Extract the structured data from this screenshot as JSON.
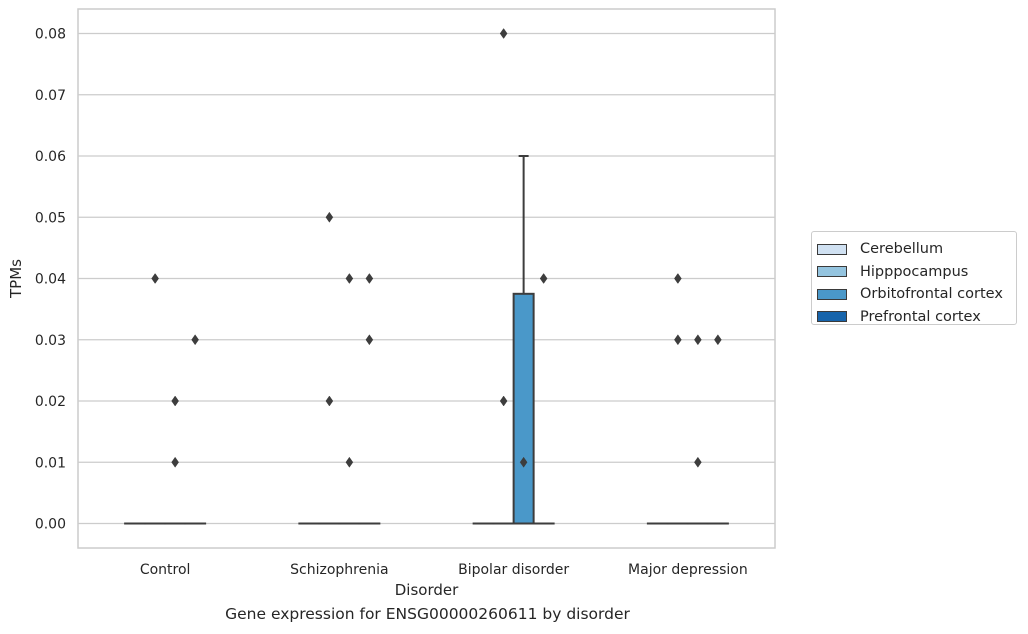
{
  "chart_data": {
    "type": "box",
    "title": "Gene expression for ENSG00000260611 by disorder",
    "xlabel": "Disorder",
    "ylabel": "TPMs",
    "ylim": [
      -0.004,
      0.084
    ],
    "yticks": [
      "0.00",
      "0.01",
      "0.02",
      "0.03",
      "0.04",
      "0.05",
      "0.06",
      "0.07",
      "0.08"
    ],
    "grid": true,
    "legend_position": "right",
    "categories": [
      "Control",
      "Schizophrenia",
      "Bipolar disorder",
      "Major depression"
    ],
    "series": [
      {
        "name": "Cerebellum",
        "color": "#d0e1f2"
      },
      {
        "name": "Hipppocampus",
        "color": "#94c4df"
      },
      {
        "name": "Orbitofrontal cortex",
        "color": "#4a98c9"
      },
      {
        "name": "Prefrontal cortex",
        "color": "#1764ab"
      }
    ],
    "boxes": [
      {
        "category": "Control",
        "series": "Cerebellum",
        "q1": 0,
        "median": 0,
        "q3": 0,
        "whisker_low": 0,
        "whisker_high": 0,
        "outliers": []
      },
      {
        "category": "Control",
        "series": "Hipppocampus",
        "q1": 0,
        "median": 0,
        "q3": 0,
        "whisker_low": 0,
        "whisker_high": 0,
        "outliers": [
          0.04
        ]
      },
      {
        "category": "Control",
        "series": "Orbitofrontal cortex",
        "q1": 0,
        "median": 0,
        "q3": 0,
        "whisker_low": 0,
        "whisker_high": 0,
        "outliers": [
          0.02,
          0.01
        ]
      },
      {
        "category": "Control",
        "series": "Prefrontal cortex",
        "q1": 0,
        "median": 0,
        "q3": 0,
        "whisker_low": 0,
        "whisker_high": 0,
        "outliers": [
          0.03
        ]
      },
      {
        "category": "Schizophrenia",
        "series": "Cerebellum",
        "q1": 0,
        "median": 0,
        "q3": 0,
        "whisker_low": 0,
        "whisker_high": 0,
        "outliers": []
      },
      {
        "category": "Schizophrenia",
        "series": "Hipppocampus",
        "q1": 0,
        "median": 0,
        "q3": 0,
        "whisker_low": 0,
        "whisker_high": 0,
        "outliers": [
          0.05,
          0.02
        ]
      },
      {
        "category": "Schizophrenia",
        "series": "Orbitofrontal cortex",
        "q1": 0,
        "median": 0,
        "q3": 0,
        "whisker_low": 0,
        "whisker_high": 0,
        "outliers": [
          0.04,
          0.01
        ]
      },
      {
        "category": "Schizophrenia",
        "series": "Prefrontal cortex",
        "q1": 0,
        "median": 0,
        "q3": 0,
        "whisker_low": 0,
        "whisker_high": 0,
        "outliers": [
          0.04,
          0.03
        ]
      },
      {
        "category": "Bipolar disorder",
        "series": "Cerebellum",
        "q1": 0,
        "median": 0,
        "q3": 0,
        "whisker_low": 0,
        "whisker_high": 0,
        "outliers": []
      },
      {
        "category": "Bipolar disorder",
        "series": "Hipppocampus",
        "q1": 0,
        "median": 0,
        "q3": 0,
        "whisker_low": 0,
        "whisker_high": 0,
        "outliers": [
          0.08,
          0.02
        ]
      },
      {
        "category": "Bipolar disorder",
        "series": "Orbitofrontal cortex",
        "q1": 0,
        "median": 0,
        "q3": 0.0375,
        "whisker_low": 0,
        "whisker_high": 0.06,
        "outliers": [
          0.01
        ]
      },
      {
        "category": "Bipolar disorder",
        "series": "Prefrontal cortex",
        "q1": 0,
        "median": 0,
        "q3": 0,
        "whisker_low": 0,
        "whisker_high": 0,
        "outliers": [
          0.04
        ]
      },
      {
        "category": "Major depression",
        "series": "Cerebellum",
        "q1": 0,
        "median": 0,
        "q3": 0,
        "whisker_low": 0,
        "whisker_high": 0,
        "outliers": []
      },
      {
        "category": "Major depression",
        "series": "Hipppocampus",
        "q1": 0,
        "median": 0,
        "q3": 0,
        "whisker_low": 0,
        "whisker_high": 0,
        "outliers": [
          0.03,
          0.04
        ]
      },
      {
        "category": "Major depression",
        "series": "Orbitofrontal cortex",
        "q1": 0,
        "median": 0,
        "q3": 0,
        "whisker_low": 0,
        "whisker_high": 0,
        "outliers": [
          0.03,
          0.01
        ]
      },
      {
        "category": "Major depression",
        "series": "Prefrontal cortex",
        "q1": 0,
        "median": 0,
        "q3": 0,
        "whisker_low": 0,
        "whisker_high": 0,
        "outliers": [
          0.03
        ]
      }
    ]
  }
}
